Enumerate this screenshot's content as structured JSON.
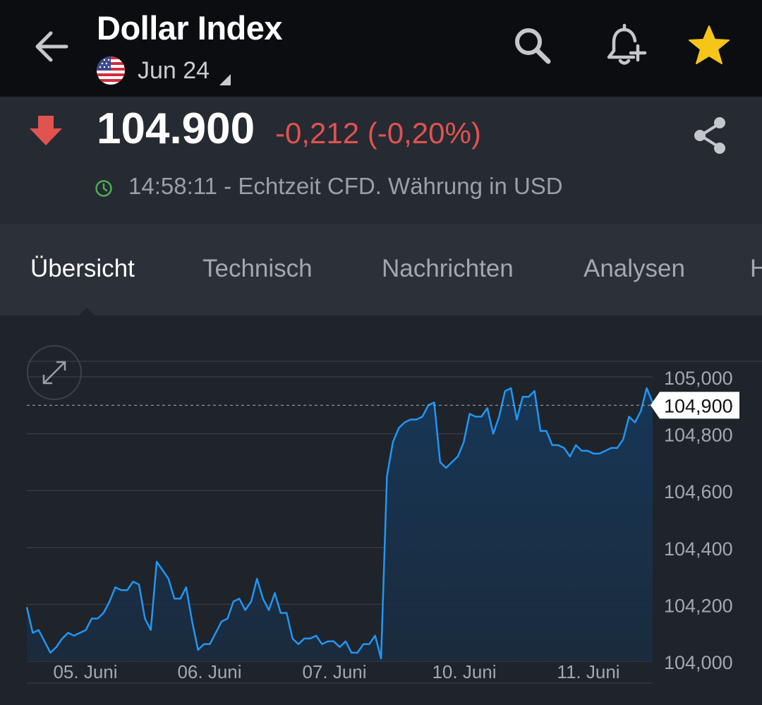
{
  "header": {
    "title": "Dollar Index",
    "expiry": "Jun 24",
    "icons": [
      "back-arrow-icon",
      "us-flag-icon",
      "search-icon",
      "bell-plus-icon",
      "star-icon"
    ]
  },
  "quote": {
    "price": "104.900",
    "change": "-0,212 (-0,20%)",
    "realtime_text": "14:58:11 - Echtzeit CFD. Währung in USD",
    "colors": {
      "negative": "#e0534f",
      "star": "#f5c518",
      "clock": "#4caf50"
    },
    "icons": [
      "down-arrow-icon",
      "share-icon",
      "clock-icon"
    ]
  },
  "tabs": [
    {
      "label": "Übersicht",
      "active": true
    },
    {
      "label": "Technisch",
      "active": false
    },
    {
      "label": "Nachrichten",
      "active": false
    },
    {
      "label": "Analysen",
      "active": false
    },
    {
      "label": "H",
      "active": false
    }
  ],
  "chart_data": {
    "type": "area",
    "ylim": [
      104.0,
      105.0
    ],
    "yticks": [
      "105,000",
      "104,800",
      "104,600",
      "104,400",
      "104,200",
      "104,000"
    ],
    "xticks": [
      "05. Juni",
      "06. Juni",
      "07. Juni",
      "10. Juni",
      "11. Juni"
    ],
    "current_label": "104,900",
    "current_value": 104.9,
    "line_color": "#2196f3",
    "grid": true,
    "series": [
      {
        "values": [
          104.19,
          104.1,
          104.11,
          104.07,
          104.03,
          104.05,
          104.08,
          104.1,
          104.09,
          104.1,
          104.11,
          104.15,
          104.15,
          104.17,
          104.21,
          104.26,
          104.25,
          104.25,
          104.28,
          104.27,
          104.15,
          104.11,
          104.35,
          104.32,
          104.29,
          104.22,
          104.22,
          104.26,
          104.14,
          104.04,
          104.06,
          104.06,
          104.1,
          104.14,
          104.15,
          104.21,
          104.22,
          104.18,
          104.21,
          104.29,
          104.22,
          104.18,
          104.24,
          104.17,
          104.17,
          104.08,
          104.06,
          104.08,
          104.08,
          104.09,
          104.06,
          104.07,
          104.07,
          104.05,
          104.07,
          104.03,
          104.03,
          104.06,
          104.06,
          104.09,
          104.01,
          104.65,
          104.77,
          104.82,
          104.84,
          104.85,
          104.85,
          104.86,
          104.9,
          104.91,
          104.7,
          104.68,
          104.7,
          104.72,
          104.77,
          104.87,
          104.86,
          104.86,
          104.89,
          104.8,
          104.86,
          104.95,
          104.96,
          104.85,
          104.93,
          104.93,
          104.95,
          104.81,
          104.81,
          104.76,
          104.76,
          104.75,
          104.72,
          104.76,
          104.74,
          104.74,
          104.73,
          104.73,
          104.74,
          104.75,
          104.75,
          104.78,
          104.86,
          104.84,
          104.88,
          104.96,
          104.91
        ]
      }
    ]
  }
}
